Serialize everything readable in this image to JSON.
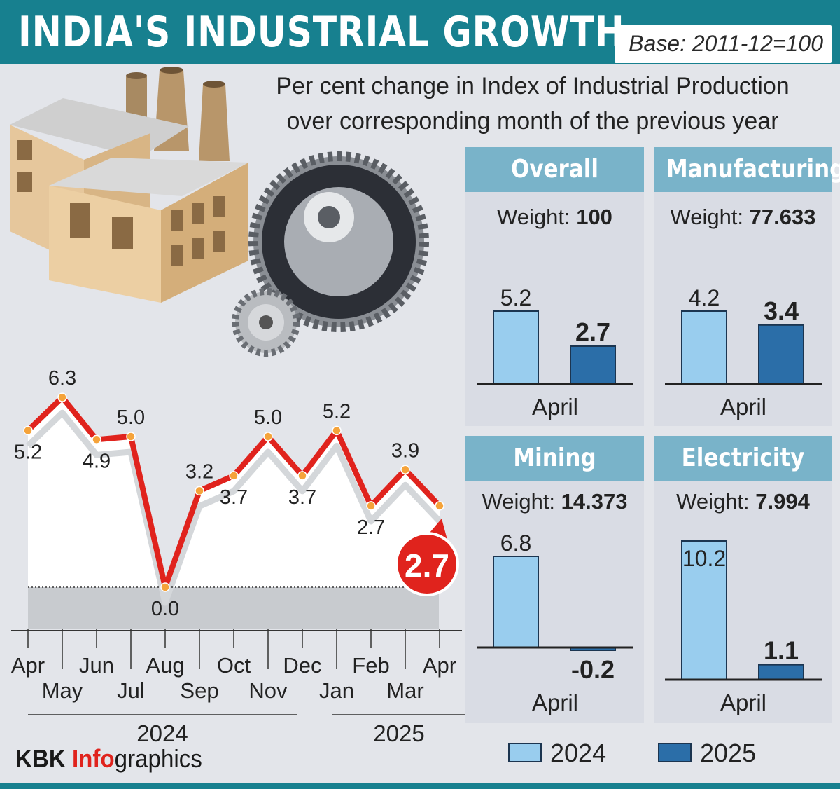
{
  "header": {
    "title": "INDIA'S INDUSTRIAL GROWTH",
    "base": "Base: 2011-12=100",
    "subtitle_line1": "Per cent change in Index of Industrial Production",
    "subtitle_line2": "over corresponding month of the previous year"
  },
  "colors": {
    "header_teal": "#17808f",
    "panel_head": "#79b3c9",
    "bar_2024": "#99cdee",
    "bar_2025": "#2b6ea8",
    "line_red": "#e0231d",
    "marker_orange": "#f5a33a",
    "background": "#e3e5ea"
  },
  "icons": [
    "factory-icon",
    "gears-icon"
  ],
  "chart_data": [
    {
      "type": "line",
      "title": "",
      "x": [
        "Apr",
        "May",
        "Jun",
        "Jul",
        "Aug",
        "Sep",
        "Oct",
        "Nov",
        "Dec",
        "Jan",
        "Feb",
        "Mar",
        "Apr"
      ],
      "year_groups": [
        {
          "label": "2024",
          "months": [
            "Apr",
            "May",
            "Jun",
            "Jul",
            "Aug",
            "Sep",
            "Oct",
            "Nov",
            "Dec"
          ]
        },
        {
          "label": "2025",
          "months": [
            "Jan",
            "Feb",
            "Mar",
            "Apr"
          ]
        }
      ],
      "series": [
        {
          "values": [
            5.2,
            6.3,
            4.9,
            5.0,
            0.0,
            3.2,
            3.7,
            5.0,
            3.7,
            5.2,
            2.7,
            3.9,
            2.7
          ]
        }
      ],
      "value_labels": [
        "5.2",
        "6.3",
        "4.9",
        "5.0",
        "0.0",
        "3.2",
        "3.7",
        "5.0",
        "3.7",
        "5.2",
        "2.7",
        "3.9",
        "2.7"
      ],
      "highlight": {
        "label": "2.7",
        "index": 12
      },
      "ylim": [
        -1,
        7
      ]
    },
    {
      "type": "bar",
      "title": "Overall",
      "weight_label": "Weight: ",
      "weight": "100",
      "categories": [
        "April"
      ],
      "series": [
        {
          "name": "2024",
          "values": [
            5.2
          ],
          "label": "5.2"
        },
        {
          "name": "2025",
          "values": [
            2.7
          ],
          "label": "2.7"
        }
      ],
      "ylim": [
        0,
        5.2
      ]
    },
    {
      "type": "bar",
      "title": "Manufacturing",
      "weight_label": "Weight: ",
      "weight": "77.633",
      "categories": [
        "April"
      ],
      "series": [
        {
          "name": "2024",
          "values": [
            4.2
          ],
          "label": "4.2"
        },
        {
          "name": "2025",
          "values": [
            3.4
          ],
          "label": "3.4"
        }
      ],
      "ylim": [
        0,
        5.2
      ]
    },
    {
      "type": "bar",
      "title": "Mining",
      "weight_label": "Weight: ",
      "weight": "14.373",
      "categories": [
        "April"
      ],
      "series": [
        {
          "name": "2024",
          "values": [
            6.8
          ],
          "label": "6.8"
        },
        {
          "name": "2025",
          "values": [
            -0.2
          ],
          "label": "-0.2"
        }
      ],
      "ylim": [
        -0.2,
        6.8
      ]
    },
    {
      "type": "bar",
      "title": "Electricity",
      "weight_label": "Weight: ",
      "weight": "7.994",
      "categories": [
        "April"
      ],
      "series": [
        {
          "name": "2024",
          "values": [
            10.2
          ],
          "label": "10.2"
        },
        {
          "name": "2025",
          "values": [
            1.1
          ],
          "label": "1.1"
        }
      ],
      "ylim": [
        0,
        10.2
      ]
    }
  ],
  "legend": [
    {
      "label": "2024",
      "color": "#99cdee"
    },
    {
      "label": "2025",
      "color": "#2b6ea8"
    }
  ],
  "brand": {
    "part1": "KBK ",
    "part2": "Info",
    "part3": "graphics"
  }
}
